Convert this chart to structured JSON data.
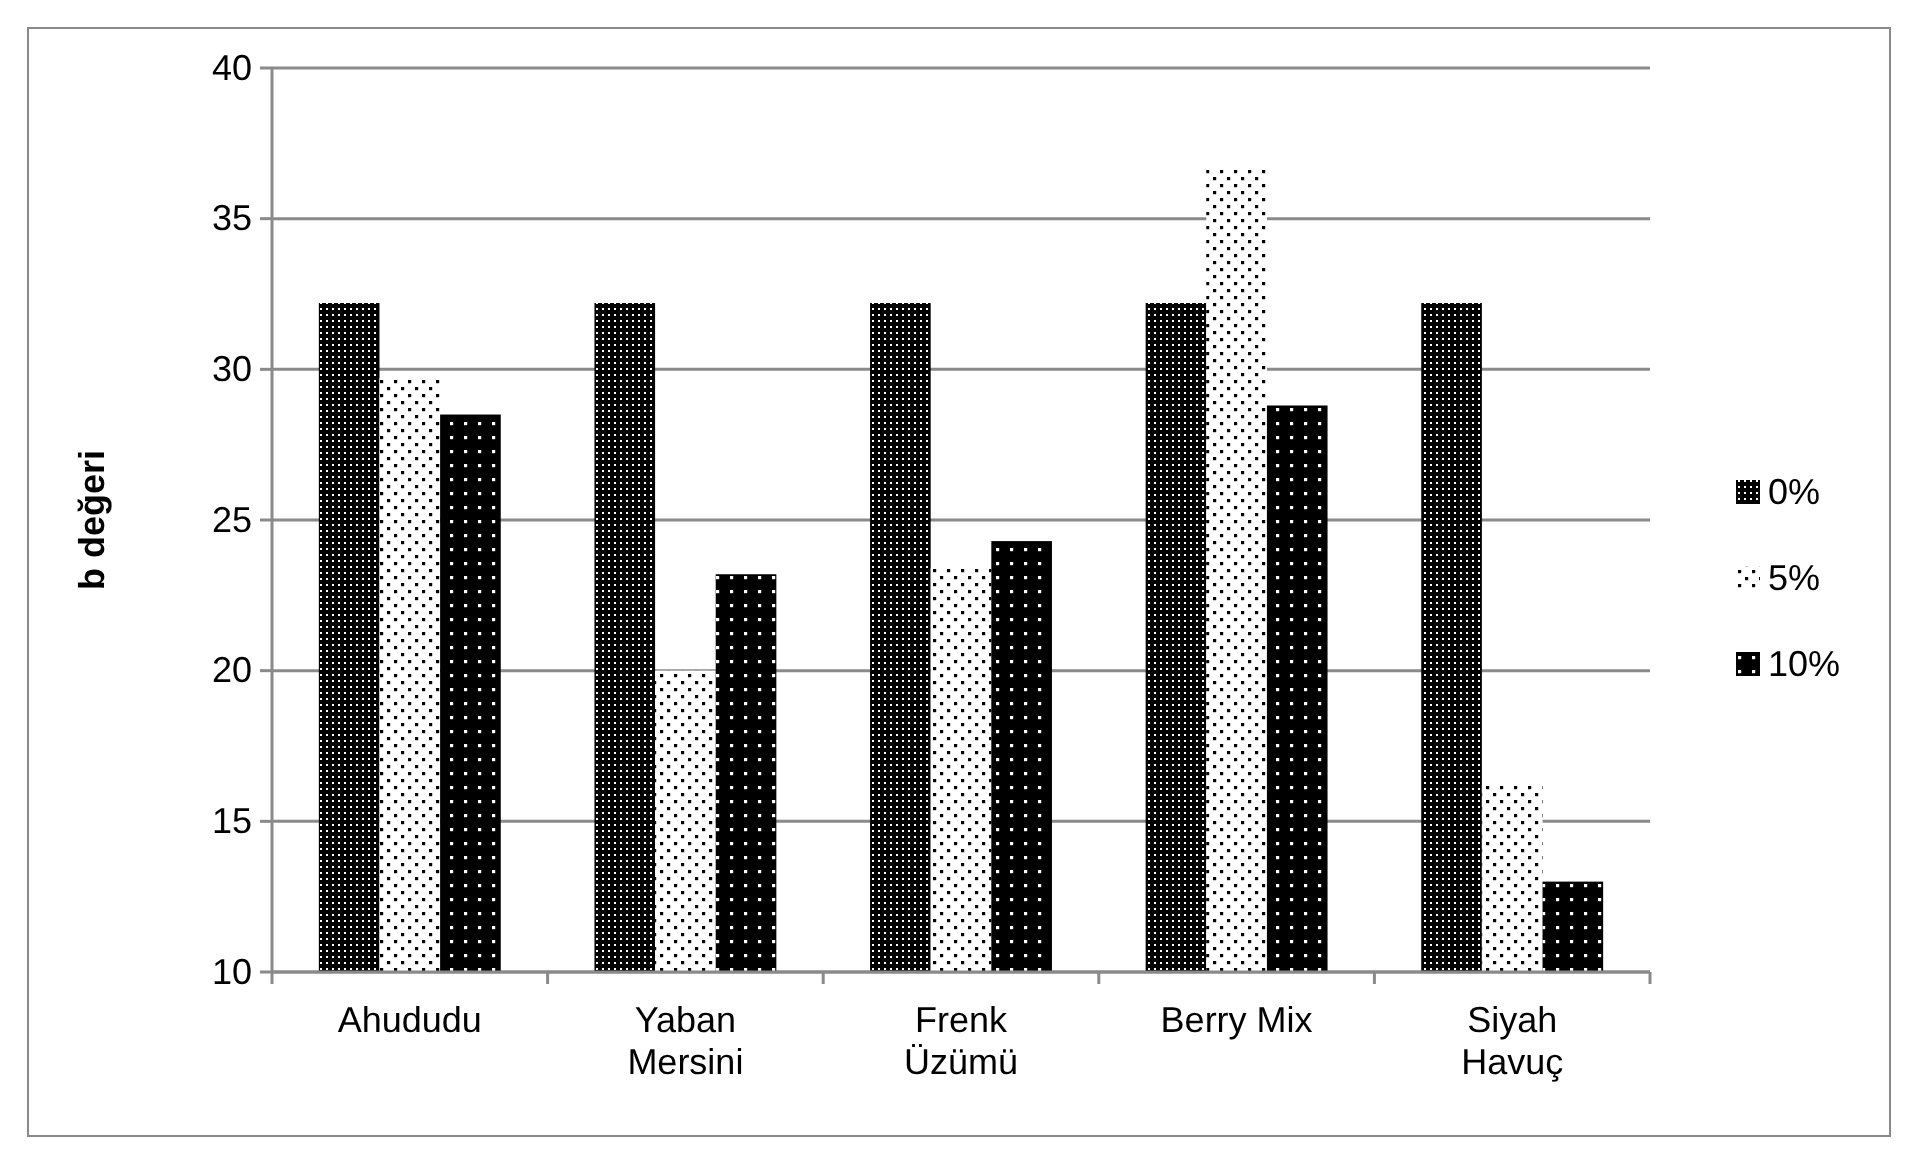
{
  "chart_data": {
    "type": "bar",
    "ylabel": "b değeri",
    "categories": [
      "Ahududu",
      "Yaban Mersini",
      "Frenk Üzümü",
      "Berry Mix",
      "Siyah Havuç"
    ],
    "series": [
      {
        "name": "0%",
        "color": "#3a3a3a",
        "values": [
          32.2,
          32.2,
          32.2,
          32.2,
          32.2
        ]
      },
      {
        "name": "5%",
        "color": "#e0e0e0",
        "values": [
          29.7,
          20.0,
          23.4,
          36.7,
          16.2
        ]
      },
      {
        "name": "10%",
        "color": "#1a1a1a",
        "values": [
          28.5,
          23.2,
          24.3,
          28.8,
          13.0
        ]
      }
    ],
    "ylim": [
      10,
      40
    ],
    "yticks": [
      10,
      15,
      20,
      25,
      30,
      35,
      40
    ],
    "grid": "y",
    "legend": "right"
  }
}
